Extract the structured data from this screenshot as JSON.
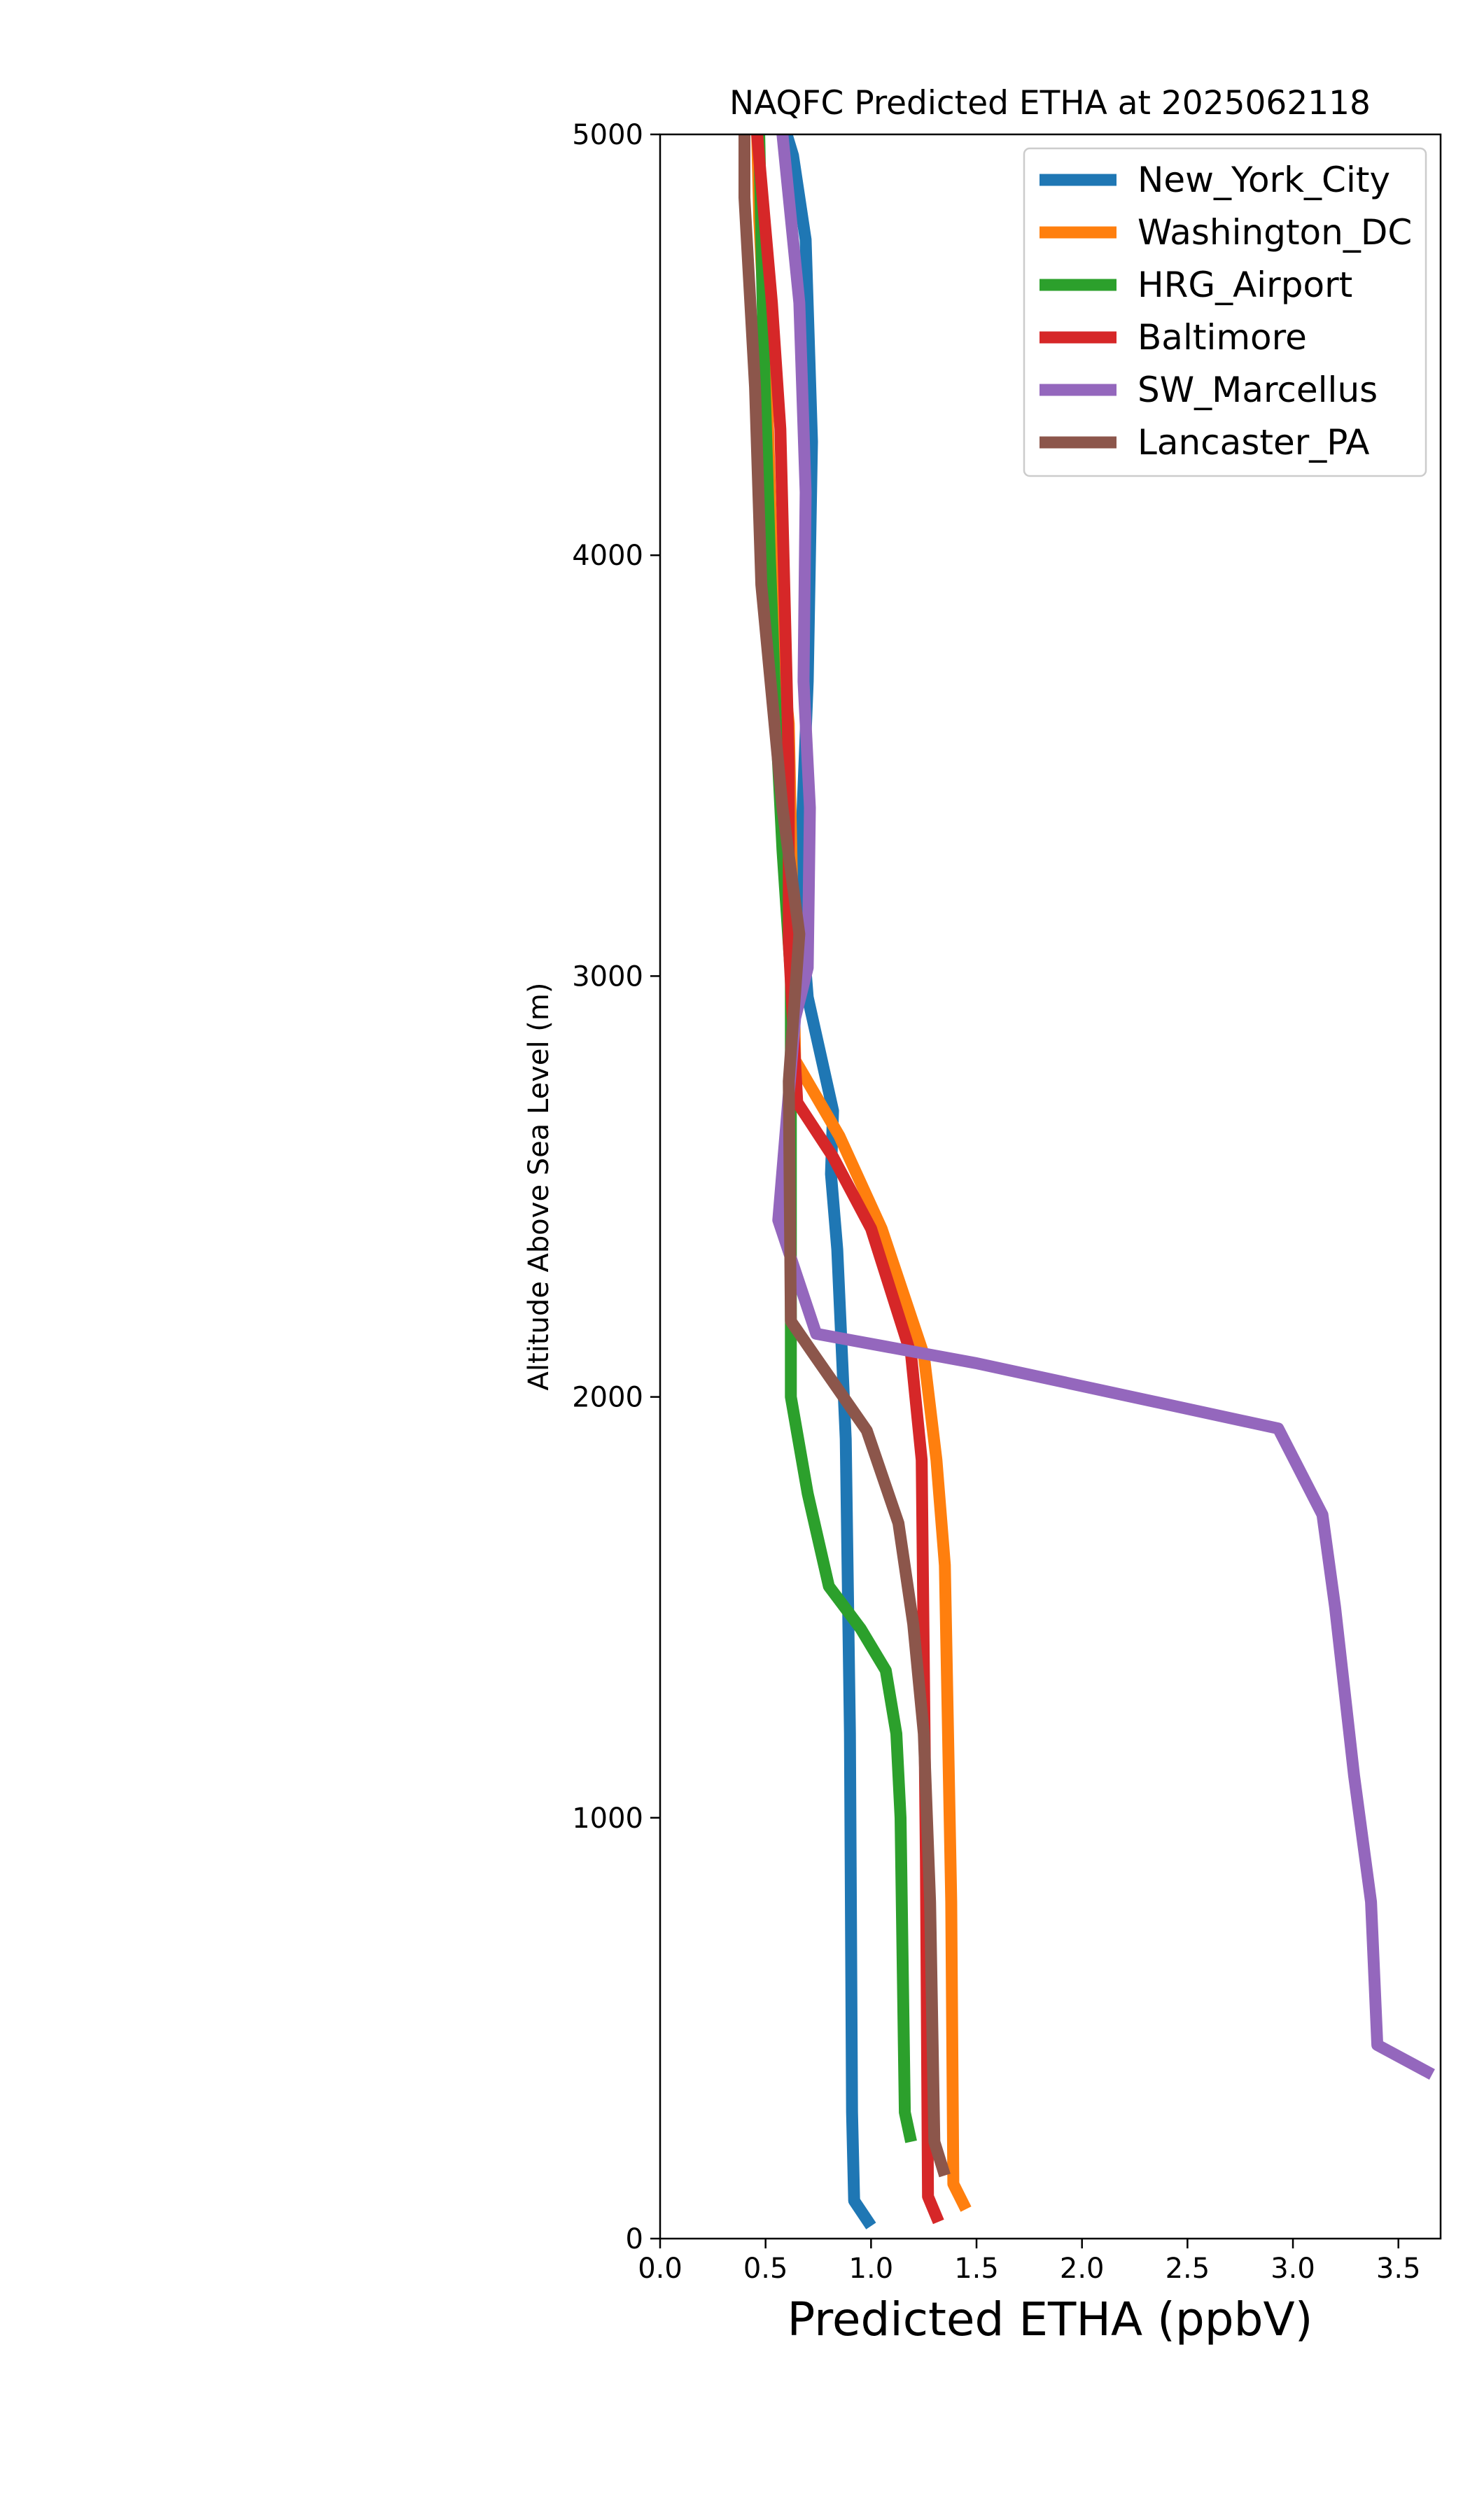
{
  "chart_data": {
    "type": "line",
    "title": "NAQFC Predicted ETHA at 2025062118",
    "xlabel": "Predicted ETHA (ppbV)",
    "ylabel": "Altitude Above Sea Level (m)",
    "xlim": [
      0.0,
      3.7
    ],
    "ylim": [
      0,
      5000
    ],
    "xticks": [
      0.0,
      0.5,
      1.0,
      1.5,
      2.0,
      2.5,
      3.0,
      3.5
    ],
    "xtick_labels": [
      "0.0",
      "0.5",
      "1.0",
      "1.5",
      "2.0",
      "2.5",
      "3.0",
      "3.5"
    ],
    "yticks": [
      0,
      1000,
      2000,
      3000,
      4000,
      5000
    ],
    "ytick_labels": [
      "0",
      "1000",
      "2000",
      "3000",
      "4000",
      "5000"
    ],
    "grid": false,
    "legend_position": "top-right",
    "series": [
      {
        "name": "New_York_City",
        "color": "#1f77b4",
        "points": [
          [
            1.0,
            30
          ],
          [
            0.92,
            90
          ],
          [
            0.91,
            300
          ],
          [
            0.9,
            1200
          ],
          [
            0.88,
            1900
          ],
          [
            0.84,
            2350
          ],
          [
            0.81,
            2530
          ],
          [
            0.82,
            2680
          ],
          [
            0.7,
            2950
          ],
          [
            0.66,
            3200
          ],
          [
            0.7,
            3700
          ],
          [
            0.72,
            4270
          ],
          [
            0.69,
            4750
          ],
          [
            0.63,
            4950
          ],
          [
            0.6,
            5000
          ]
        ]
      },
      {
        "name": "Washington_DC",
        "color": "#ff7f0e",
        "points": [
          [
            1.45,
            70
          ],
          [
            1.39,
            130
          ],
          [
            1.38,
            800
          ],
          [
            1.35,
            1600
          ],
          [
            1.31,
            1850
          ],
          [
            1.25,
            2100
          ],
          [
            1.05,
            2400
          ],
          [
            0.85,
            2620
          ],
          [
            0.64,
            2800
          ],
          [
            0.63,
            3100
          ],
          [
            0.61,
            3600
          ],
          [
            0.53,
            4000
          ],
          [
            0.5,
            4500
          ],
          [
            0.47,
            4800
          ],
          [
            0.46,
            5000
          ]
        ]
      },
      {
        "name": "HRG_Airport",
        "color": "#2ca02c",
        "points": [
          [
            1.19,
            230
          ],
          [
            1.16,
            300
          ],
          [
            1.14,
            1000
          ],
          [
            1.12,
            1200
          ],
          [
            1.07,
            1350
          ],
          [
            0.95,
            1450
          ],
          [
            0.8,
            1550
          ],
          [
            0.7,
            1770
          ],
          [
            0.62,
            2000
          ],
          [
            0.62,
            2500
          ],
          [
            0.62,
            3000
          ],
          [
            0.58,
            3300
          ],
          [
            0.55,
            3600
          ],
          [
            0.52,
            4000
          ],
          [
            0.49,
            4500
          ],
          [
            0.47,
            5000
          ]
        ]
      },
      {
        "name": "Baltimore",
        "color": "#d62728",
        "points": [
          [
            1.32,
            40
          ],
          [
            1.27,
            100
          ],
          [
            1.26,
            900
          ],
          [
            1.24,
            1850
          ],
          [
            1.19,
            2100
          ],
          [
            1.0,
            2400
          ],
          [
            0.82,
            2570
          ],
          [
            0.65,
            2700
          ],
          [
            0.61,
            3080
          ],
          [
            0.61,
            3500
          ],
          [
            0.57,
            4300
          ],
          [
            0.53,
            4600
          ],
          [
            0.46,
            5000
          ]
        ]
      },
      {
        "name": "SW_Marcellus",
        "color": "#9467bd",
        "points": [
          [
            3.66,
            390
          ],
          [
            3.4,
            460
          ],
          [
            3.37,
            800
          ],
          [
            3.29,
            1100
          ],
          [
            3.2,
            1500
          ],
          [
            3.14,
            1720
          ],
          [
            2.93,
            1925
          ],
          [
            1.5,
            2080
          ],
          [
            0.74,
            2150
          ],
          [
            0.56,
            2420
          ],
          [
            0.64,
            2900
          ],
          [
            0.7,
            3020
          ],
          [
            0.71,
            3400
          ],
          [
            0.68,
            3700
          ],
          [
            0.69,
            4150
          ],
          [
            0.66,
            4600
          ],
          [
            0.58,
            5000
          ]
        ]
      },
      {
        "name": "Lancaster_PA",
        "color": "#8c564b",
        "points": [
          [
            1.35,
            150
          ],
          [
            1.3,
            230
          ],
          [
            1.28,
            800
          ],
          [
            1.25,
            1200
          ],
          [
            1.2,
            1460
          ],
          [
            1.13,
            1700
          ],
          [
            0.98,
            1920
          ],
          [
            0.73,
            2100
          ],
          [
            0.62,
            2180
          ],
          [
            0.61,
            2750
          ],
          [
            0.66,
            3100
          ],
          [
            0.58,
            3400
          ],
          [
            0.48,
            3930
          ],
          [
            0.45,
            4400
          ],
          [
            0.4,
            4850
          ],
          [
            0.4,
            5000
          ]
        ]
      }
    ]
  }
}
